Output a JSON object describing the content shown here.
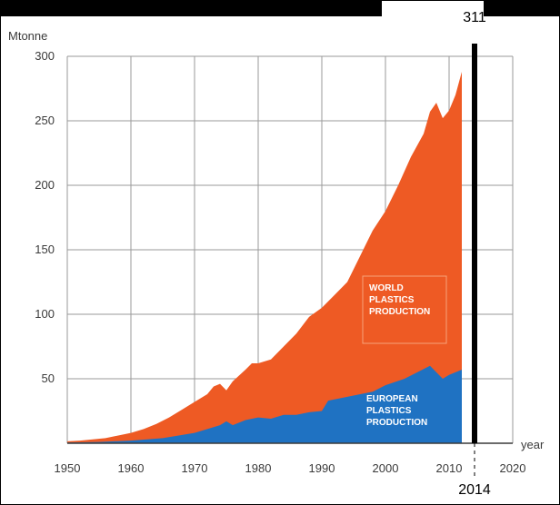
{
  "chart_data": {
    "type": "area",
    "title": "",
    "xlabel": "year",
    "ylabel": "Mtonne",
    "xlim": [
      1950,
      2020
    ],
    "ylim": [
      0,
      300
    ],
    "x_ticks": [
      "1950",
      "1960",
      "1970",
      "1980",
      "1990",
      "2000",
      "2010",
      "2020"
    ],
    "y_ticks": [
      "50",
      "100",
      "150",
      "200",
      "250",
      "300"
    ],
    "grid": true,
    "legend": "inline labels",
    "series": [
      {
        "name": "WORLD PLASTICS PRODUCTION",
        "label_lines": [
          "WORLD",
          "PLASTICS",
          "PRODUCTION"
        ],
        "color": "#ee5a24",
        "x": [
          1950,
          1952,
          1954,
          1956,
          1958,
          1960,
          1962,
          1964,
          1966,
          1968,
          1970,
          1972,
          1973,
          1974,
          1975,
          1976,
          1978,
          1979,
          1980,
          1982,
          1984,
          1986,
          1988,
          1990,
          1992,
          1994,
          1996,
          1998,
          2000,
          2002,
          2004,
          2006,
          2007,
          2008,
          2009,
          2010,
          2011,
          2012
        ],
        "y": [
          1.5,
          2,
          3,
          4,
          6,
          8,
          11,
          15,
          20,
          26,
          32,
          38,
          44,
          46,
          41,
          48,
          57,
          62,
          62,
          65,
          75,
          85,
          98,
          105,
          115,
          125,
          145,
          165,
          180,
          200,
          222,
          240,
          257,
          264,
          252,
          258,
          270,
          288
        ]
      },
      {
        "name": "EUROPEAN PLASTICS PRODUCTION",
        "label_lines": [
          "EUROPEAN",
          "PLASTICS",
          "PRODUCTION"
        ],
        "color": "#1f72c2",
        "x": [
          1950,
          1955,
          1960,
          1965,
          1970,
          1972,
          1974,
          1975,
          1976,
          1978,
          1980,
          1982,
          1984,
          1986,
          1988,
          1990,
          1991,
          1994,
          1998,
          2000,
          2003,
          2005,
          2007,
          2008,
          2009,
          2010,
          2012
        ],
        "y": [
          0.5,
          1,
          2,
          4,
          8,
          11,
          14,
          17,
          14,
          18,
          20,
          19,
          22,
          22,
          24,
          25,
          33,
          36,
          40,
          45,
          50,
          55,
          60,
          55,
          50,
          53,
          57
        ]
      }
    ],
    "annotations": {
      "line_year": 2014,
      "line_year_label": "2014",
      "line_value_label": "311"
    }
  },
  "colors": {
    "world": "#ee5a24",
    "europe": "#1f72c2",
    "grid": "#9a9a9a",
    "marker": "#000000"
  }
}
